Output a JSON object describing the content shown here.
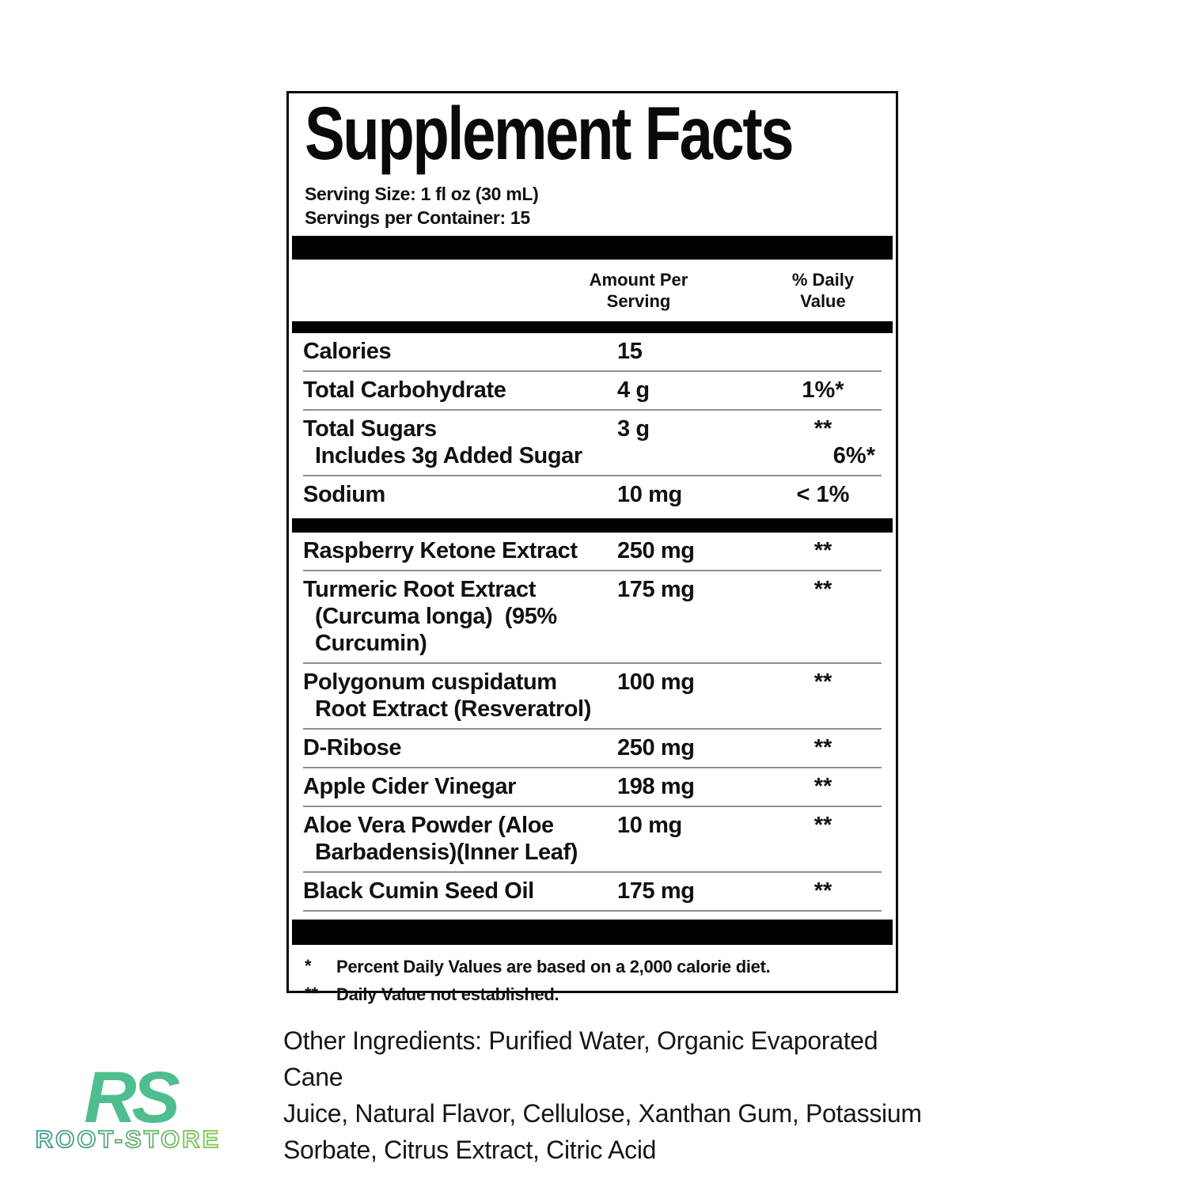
{
  "sf": {
    "title": "Supplement Facts",
    "serving_size": "Serving Size: 1 fl oz (30 mL)",
    "servings_per_container": "Servings per Container: 15",
    "columns": {
      "amount": "Amount Per\nServing",
      "daily_value": "% Daily\nValue"
    },
    "nutrients": [
      {
        "name": "Calories",
        "amount": "15",
        "dv": ""
      },
      {
        "name": "Total Carbohydrate",
        "amount": "4 g",
        "dv": "1%*"
      },
      {
        "name": "Total Sugars",
        "amount": "3 g",
        "dv": "**",
        "sub_name": "Includes 3g Added Sugar",
        "sub_dv": "6%*"
      },
      {
        "name": "Sodium",
        "amount": "10 mg",
        "dv": "< 1%"
      }
    ],
    "ingredients": [
      {
        "name": "Raspberry Ketone Extract",
        "amount": "250 mg",
        "dv": "**"
      },
      {
        "name": "Turmeric Root Extract\n(Curcuma longa)  (95%\nCurcumin)",
        "amount": "175 mg",
        "dv": "**"
      },
      {
        "name": "Polygonum cuspidatum\nRoot Extract (Resveratrol)",
        "amount": "100 mg",
        "dv": "**"
      },
      {
        "name": "D-Ribose",
        "amount": "250 mg",
        "dv": "**"
      },
      {
        "name": "Apple Cider Vinegar",
        "amount": "198 mg",
        "dv": "**"
      },
      {
        "name": "Aloe Vera Powder (Aloe\nBarbadensis)(Inner Leaf)",
        "amount": "10 mg",
        "dv": "**"
      },
      {
        "name": "Black Cumin Seed Oil",
        "amount": "175 mg",
        "dv": "**"
      }
    ],
    "footnotes": [
      {
        "marker": "*",
        "text": "Percent Daily Values are based on a 2,000 calorie diet."
      },
      {
        "marker": "**",
        "text": "Daily Value not established."
      }
    ]
  },
  "other_ingredients": "Other Ingredients: Purified Water, Organic Evaporated Cane\nJuice, Natural Flavor, Cellulose, Xanthan Gum, Potassium\nSorbate, Citrus Extract, Citric Acid",
  "logo": {
    "monogram": "RS",
    "wordmark": "ROOT-STORE",
    "monogram_color": "#4FBE8E",
    "gradient_start": "#3C9898",
    "gradient_end": "#82C94E"
  }
}
